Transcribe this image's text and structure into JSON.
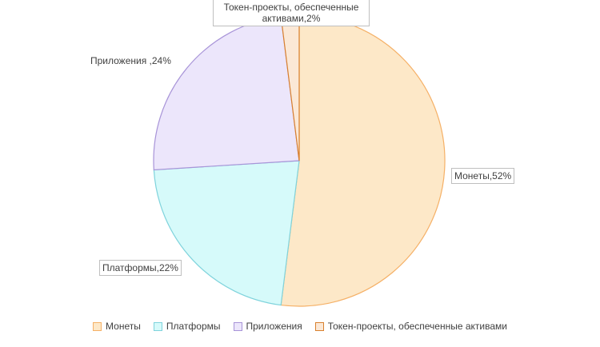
{
  "chart_data": {
    "type": "pie",
    "title": "",
    "slices": [
      {
        "label": "Монеты",
        "value": 52,
        "data_label": "Монеты,52%",
        "fill": "#fde8c8",
        "stroke": "#f5b066"
      },
      {
        "label": "Платформы",
        "value": 22,
        "data_label": "Платформы,22%",
        "fill": "#d6fafa",
        "stroke": "#7fd3dc"
      },
      {
        "label": "Приложения",
        "value": 24,
        "data_label": "Приложения ,24%",
        "fill": "#ece6fb",
        "stroke": "#a894d8"
      },
      {
        "label": "Токен-проекты, обеспеченные активами",
        "value": 2,
        "data_label": "Токен-проекты, обеспеченные активами,2%",
        "fill": "#fbe8d6",
        "stroke": "#d9802e"
      }
    ],
    "legend_position": "bottom"
  }
}
